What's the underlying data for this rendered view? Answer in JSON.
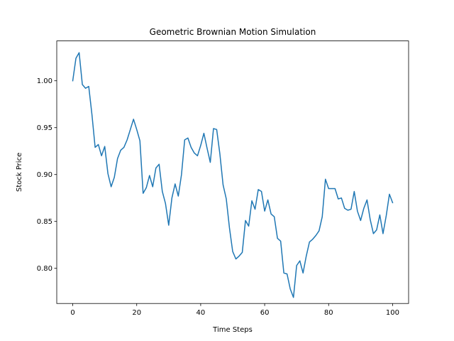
{
  "chart_data": {
    "type": "line",
    "title": "Geometric Brownian Motion Simulation",
    "xlabel": "Time Steps",
    "ylabel": "Stock Price",
    "xlim": [
      -5,
      105
    ],
    "ylim": [
      0.7625,
      1.0425
    ],
    "xticks": [
      0,
      20,
      40,
      60,
      80,
      100
    ],
    "xtick_labels": [
      "0",
      "20",
      "40",
      "60",
      "80",
      "100"
    ],
    "yticks": [
      0.8,
      0.85,
      0.9,
      0.95,
      1.0
    ],
    "ytick_labels": [
      "0.80",
      "0.85",
      "0.90",
      "0.95",
      "1.00"
    ],
    "grid": false,
    "line_color": "#1f77b4",
    "x": [
      0,
      1,
      2,
      3,
      4,
      5,
      6,
      7,
      8,
      9,
      10,
      11,
      12,
      13,
      14,
      15,
      16,
      17,
      18,
      19,
      20,
      21,
      22,
      23,
      24,
      25,
      26,
      27,
      28,
      29,
      30,
      31,
      32,
      33,
      34,
      35,
      36,
      37,
      38,
      39,
      40,
      41,
      42,
      43,
      44,
      45,
      46,
      47,
      48,
      49,
      50,
      51,
      52,
      53,
      54,
      55,
      56,
      57,
      58,
      59,
      60,
      61,
      62,
      63,
      64,
      65,
      66,
      67,
      68,
      69,
      70,
      71,
      72,
      73,
      74,
      75,
      76,
      77,
      78,
      79,
      80,
      81,
      82,
      83,
      84,
      85,
      86,
      87,
      88,
      89,
      90,
      91,
      92,
      93,
      94,
      95,
      96,
      97,
      98,
      99,
      100
    ],
    "y": [
      1.0,
      1.024,
      1.03,
      0.996,
      0.992,
      0.994,
      0.964,
      0.929,
      0.932,
      0.92,
      0.93,
      0.901,
      0.887,
      0.897,
      0.917,
      0.926,
      0.929,
      0.937,
      0.948,
      0.959,
      0.948,
      0.936,
      0.88,
      0.886,
      0.899,
      0.887,
      0.907,
      0.911,
      0.882,
      0.869,
      0.846,
      0.875,
      0.89,
      0.877,
      0.9,
      0.937,
      0.939,
      0.929,
      0.923,
      0.92,
      0.931,
      0.944,
      0.928,
      0.913,
      0.949,
      0.948,
      0.922,
      0.889,
      0.874,
      0.843,
      0.818,
      0.81,
      0.813,
      0.817,
      0.851,
      0.845,
      0.872,
      0.863,
      0.884,
      0.882,
      0.861,
      0.873,
      0.858,
      0.855,
      0.832,
      0.829,
      0.795,
      0.794,
      0.778,
      0.769,
      0.803,
      0.808,
      0.795,
      0.813,
      0.828,
      0.831,
      0.835,
      0.84,
      0.855,
      0.895,
      0.885,
      0.885,
      0.885,
      0.874,
      0.875,
      0.864,
      0.862,
      0.863,
      0.882,
      0.861,
      0.851,
      0.864,
      0.873,
      0.852,
      0.837,
      0.841,
      0.857,
      0.837,
      0.856,
      0.879,
      0.87
    ]
  }
}
